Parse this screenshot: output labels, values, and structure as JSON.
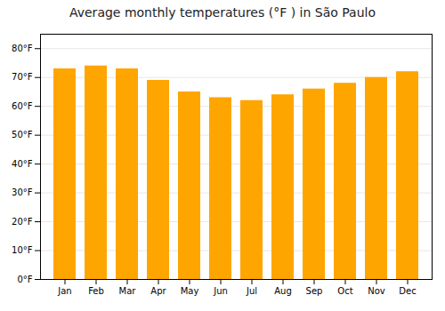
{
  "chart_data": {
    "type": "bar",
    "title": "Average monthly temperatures (°F ) in São Paulo",
    "categories": [
      "Jan",
      "Feb",
      "Mar",
      "Apr",
      "May",
      "Jun",
      "Jul",
      "Aug",
      "Sep",
      "Oct",
      "Nov",
      "Dec"
    ],
    "values": [
      73,
      74,
      73,
      69,
      65,
      63,
      62,
      64,
      66,
      68,
      70,
      72
    ],
    "color": "#FFA500",
    "ylim": [
      0,
      85
    ],
    "yticks": [
      {
        "value": 0,
        "label": "0°F"
      },
      {
        "value": 10,
        "label": "10°F"
      },
      {
        "value": 20,
        "label": "20°F"
      },
      {
        "value": 30,
        "label": "30°F"
      },
      {
        "value": 40,
        "label": "40°F"
      },
      {
        "value": 50,
        "label": "50°F"
      },
      {
        "value": 60,
        "label": "60°F"
      },
      {
        "value": 70,
        "label": "70°F"
      },
      {
        "value": 80,
        "label": "80°F"
      }
    ],
    "grid": true
  }
}
